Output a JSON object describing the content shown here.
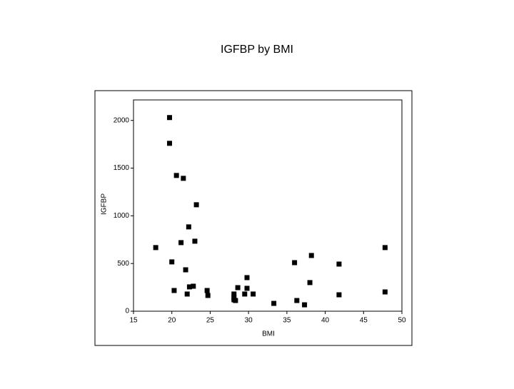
{
  "chart_data": {
    "type": "scatter",
    "title": "IGFBP by BMI",
    "x_label": "BMI",
    "y_label": "IGFBP",
    "color": "#000000",
    "xlim": [
      15,
      50
    ],
    "ylim": [
      0,
      2200
    ],
    "xticks": [
      15,
      20,
      25,
      30,
      35,
      40,
      45,
      50
    ],
    "yticks": [
      0,
      500,
      1000,
      1500,
      2000
    ],
    "x": [
      19.7,
      19.7,
      20.6,
      21.5,
      23.2,
      22.2,
      23.0,
      21.2,
      17.9,
      20.0,
      21.8,
      20.3,
      22.0,
      22.3,
      22.8,
      24.6,
      24.7,
      28.1,
      28.1,
      28.1,
      28.3,
      28.6,
      29.8,
      29.8,
      29.5,
      30.6,
      33.3,
      36.0,
      36.3,
      37.3,
      38.2,
      38.0,
      41.8,
      41.8,
      47.8,
      47.8
    ],
    "values": [
      2030,
      1760,
      1423,
      1393,
      1116,
      884,
      734,
      719,
      667,
      517,
      434,
      217,
      180,
      255,
      262,
      217,
      165,
      180,
      142,
      120,
      112,
      247,
      352,
      240,
      180,
      180,
      82,
      509,
      112,
      67,
      584,
      300,
      494,
      172,
      667,
      202
    ]
  }
}
